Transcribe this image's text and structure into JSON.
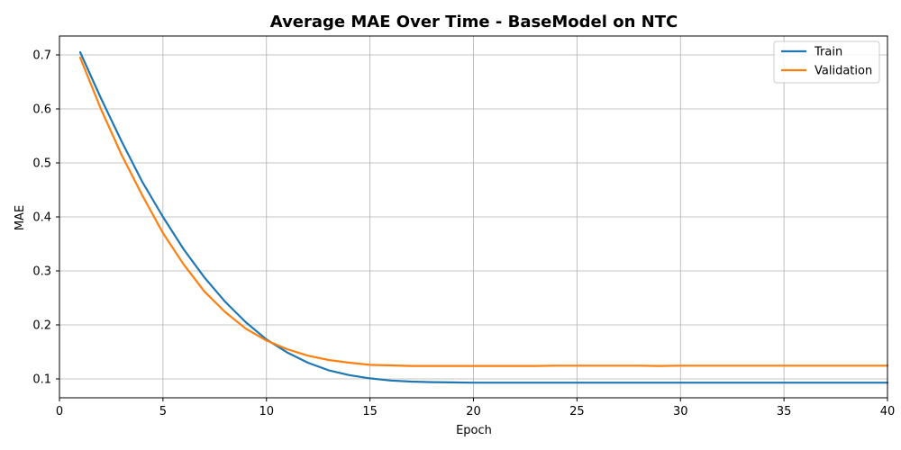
{
  "chart_data": {
    "type": "line",
    "title": "Average MAE Over Time - BaseModel on NTC",
    "xlabel": "Epoch",
    "ylabel": "MAE",
    "xlim": [
      0,
      40
    ],
    "ylim": [
      0.065,
      0.735
    ],
    "x_ticks": [
      0,
      5,
      10,
      15,
      20,
      25,
      30,
      35,
      40
    ],
    "y_ticks": [
      0.1,
      0.2,
      0.3,
      0.4,
      0.5,
      0.6,
      0.7
    ],
    "y_tick_labels": [
      "0.1",
      "0.2",
      "0.3",
      "0.4",
      "0.5",
      "0.6",
      "0.7"
    ],
    "grid": true,
    "legend_position": "top-right",
    "x": [
      1,
      2,
      3,
      4,
      5,
      6,
      7,
      8,
      9,
      10,
      11,
      12,
      13,
      14,
      15,
      16,
      17,
      18,
      19,
      20,
      21,
      22,
      23,
      24,
      25,
      26,
      27,
      28,
      29,
      30,
      31,
      32,
      33,
      34,
      35,
      36,
      37,
      38,
      39,
      40
    ],
    "series": [
      {
        "name": "Train",
        "color": "#1f77b4",
        "values": [
          0.705,
          0.62,
          0.54,
          0.465,
          0.4,
          0.34,
          0.288,
          0.243,
          0.205,
          0.173,
          0.149,
          0.13,
          0.116,
          0.107,
          0.101,
          0.097,
          0.095,
          0.094,
          0.0935,
          0.093,
          0.093,
          0.093,
          0.093,
          0.093,
          0.093,
          0.093,
          0.093,
          0.093,
          0.093,
          0.093,
          0.093,
          0.093,
          0.093,
          0.093,
          0.093,
          0.093,
          0.093,
          0.093,
          0.093,
          0.093
        ]
      },
      {
        "name": "Validation",
        "color": "#ff7f0e",
        "values": [
          0.695,
          0.6,
          0.515,
          0.44,
          0.37,
          0.312,
          0.262,
          0.224,
          0.193,
          0.171,
          0.155,
          0.143,
          0.135,
          0.13,
          0.126,
          0.125,
          0.124,
          0.124,
          0.124,
          0.124,
          0.124,
          0.124,
          0.124,
          0.1245,
          0.1245,
          0.1245,
          0.1245,
          0.1245,
          0.124,
          0.1245,
          0.1245,
          0.1245,
          0.1245,
          0.1245,
          0.1245,
          0.1245,
          0.1245,
          0.1245,
          0.1245,
          0.1245
        ]
      }
    ]
  }
}
